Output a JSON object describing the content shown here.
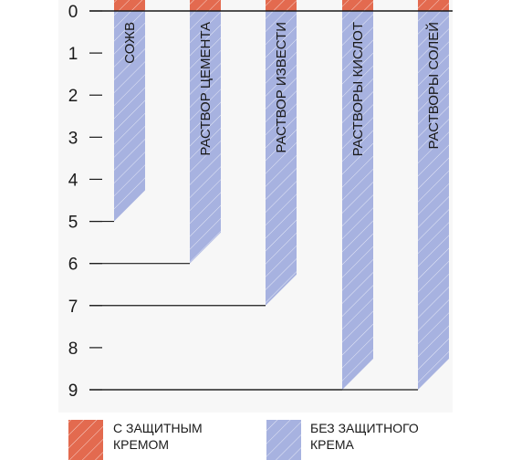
{
  "chart_data": {
    "type": "bar",
    "orientation": "vertical-downward",
    "title": "",
    "xlabel": "",
    "ylabel": "",
    "ylim": [
      0,
      9
    ],
    "y_ticks": [
      "0",
      "1",
      "2",
      "3",
      "4",
      "5",
      "6",
      "7",
      "8",
      "9"
    ],
    "categories": [
      "СОЖВ",
      "РАСТВОР ЦЕМЕНТА",
      "РАСТВОР ИЗВЕСТИ",
      "РАСТВОРЫ КИСЛОТ",
      "РАСТВОРЫ СОЛЕЙ"
    ],
    "series": [
      {
        "name": "С ЗАЩИТНЫМ КРЕМОМ",
        "values": [
          0.0,
          0.0,
          0.0,
          0.0,
          0.0
        ],
        "color": "#e36a4f"
      },
      {
        "name": "БЕЗ ЗАЩИТНОГО КРЕМА",
        "values": [
          5,
          6,
          7,
          9,
          9
        ],
        "color": "#a7b2e0"
      }
    ],
    "legend": {
      "placement": "bottom",
      "items": [
        {
          "line1": "С ЗАЩИТНЫМ",
          "line2": "КРЕМОМ",
          "color": "#e36a4f"
        },
        {
          "line1": "БЕЗ ЗАЩИТНОГО",
          "line2": "КРЕМА",
          "color": "#a7b2e0"
        }
      ]
    },
    "grid": false
  }
}
